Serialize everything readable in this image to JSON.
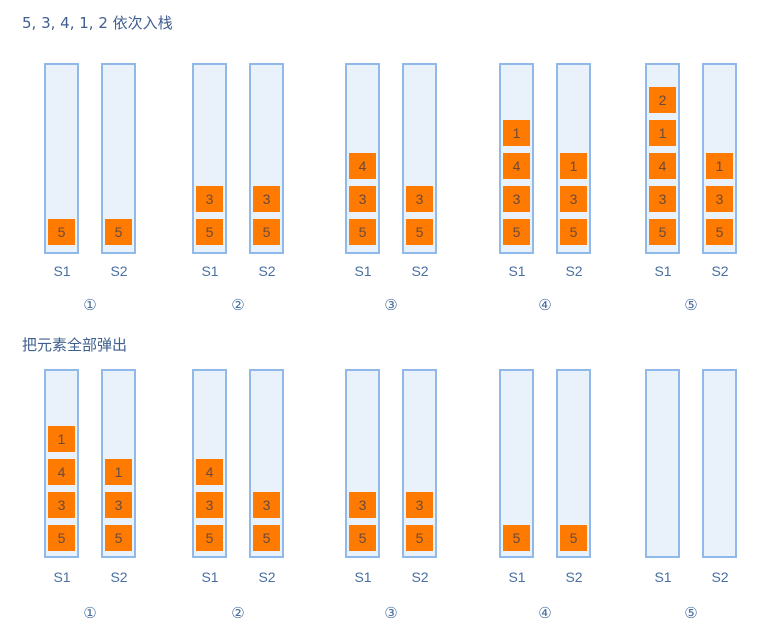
{
  "rows": [
    {
      "title": "5, 3, 4, 1, 2 依次入栈",
      "frames": [
        {
          "step": "①",
          "s1": [
            "5"
          ],
          "s2": [
            "5"
          ],
          "s1_label": "S1",
          "s2_label": "S2"
        },
        {
          "step": "②",
          "s1": [
            "5",
            "3"
          ],
          "s2": [
            "5",
            "3"
          ],
          "s1_label": "S1",
          "s2_label": "S2"
        },
        {
          "step": "③",
          "s1": [
            "5",
            "3",
            "4"
          ],
          "s2": [
            "5",
            "3"
          ],
          "s1_label": "S1",
          "s2_label": "S2"
        },
        {
          "step": "④",
          "s1": [
            "5",
            "3",
            "4",
            "1"
          ],
          "s2": [
            "5",
            "3",
            "1"
          ],
          "s1_label": "S1",
          "s2_label": "S2"
        },
        {
          "step": "⑤",
          "s1": [
            "5",
            "3",
            "4",
            "1",
            "2"
          ],
          "s2": [
            "5",
            "3",
            "1"
          ],
          "s1_label": "S1",
          "s2_label": "S2"
        }
      ]
    },
    {
      "title": "把元素全部弹出",
      "frames": [
        {
          "step": "①",
          "s1": [
            "5",
            "3",
            "4",
            "1"
          ],
          "s2": [
            "5",
            "3",
            "1"
          ],
          "s1_label": "S1",
          "s2_label": "S2"
        },
        {
          "step": "②",
          "s1": [
            "5",
            "3",
            "4"
          ],
          "s2": [
            "5",
            "3"
          ],
          "s1_label": "S1",
          "s2_label": "S2"
        },
        {
          "step": "③",
          "s1": [
            "5",
            "3"
          ],
          "s2": [
            "5",
            "3"
          ],
          "s1_label": "S1",
          "s2_label": "S2"
        },
        {
          "step": "④",
          "s1": [
            "5"
          ],
          "s2": [
            "5"
          ],
          "s1_label": "S1",
          "s2_label": "S2"
        },
        {
          "step": "⑤",
          "s1": [],
          "s2": [],
          "s1_label": "S1",
          "s2_label": "S2"
        }
      ]
    }
  ],
  "colors": {
    "stack_fill": "#e9f1fb",
    "stack_border": "#90b8e8",
    "element_fill": "#ff7a00",
    "text": "#4a6fa0"
  }
}
